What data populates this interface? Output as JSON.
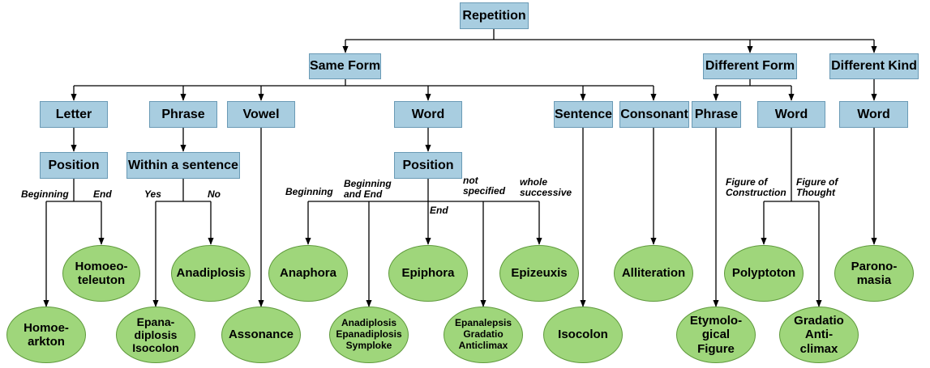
{
  "root": "Repetition",
  "categories": {
    "same_form": "Same Form",
    "different_form": "Different Form",
    "different_kind": "Different Kind"
  },
  "same_form_children": {
    "letter": "Letter",
    "phrase": "Phrase",
    "vowel": "Vowel",
    "word": "Word",
    "sentence": "Sentence",
    "consonant": "Consonant"
  },
  "different_form_children": {
    "phrase": "Phrase",
    "word": "Word"
  },
  "different_kind_children": {
    "word": "Word"
  },
  "sub_nodes": {
    "letter_position": "Position",
    "within_sentence": "Within a sentence",
    "word_position": "Position"
  },
  "edge_labels": {
    "beginning_1": "Beginning",
    "end_1": "End",
    "yes": "Yes",
    "no": "No",
    "beginning_2": "Beginning",
    "beginning_and_end": "Beginning\nand End",
    "end_2": "End",
    "not_specified": "not\nspecified",
    "whole_successive": "whole\nsuccessive",
    "figure_construction": "Figure of\nConstruction",
    "figure_thought": "Figure of\nThought"
  },
  "leaves": {
    "homoeoarkton": "Homoe-\narkton",
    "homoeoteleuton": "Homoeo-\nteleuton",
    "epanadiplosis_isocolon": "Epana-\ndiplosis\nIsocolon",
    "anadiplosis": "Anadiplosis",
    "assonance": "Assonance",
    "anaphora": "Anaphora",
    "anadiplosis_group": "Anadiplosis\nEpanadiplosis\nSymploke",
    "epiphora": "Epiphora",
    "epanalepsis_group": "Epanalepsis\nGradatio\nAnticlimax",
    "epizeuxis": "Epizeuxis",
    "isocolon": "Isocolon",
    "alliteration": "Alliteration",
    "etymological_figure": "Etymolo-\ngical\nFigure",
    "polyptoton": "Polyptoton",
    "gradatio_anticlimax": "Gradatio\nAnti-\nclimax",
    "paronomasia": "Parono-\nmasia"
  },
  "colors": {
    "box_fill": "#a8cde0",
    "box_border": "#6a9ab5",
    "leaf_fill": "#9fd67b",
    "leaf_border": "#5f9a3c",
    "line": "#000000"
  }
}
